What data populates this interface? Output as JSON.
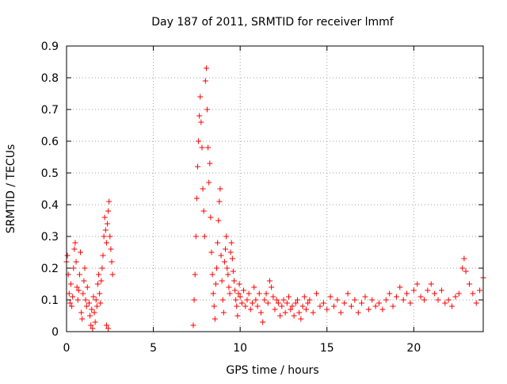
{
  "chart_data": {
    "type": "scatter",
    "title": "Day 187 of 2011, SRMTID for receiver lmmf",
    "xlabel": "GPS time / hours",
    "ylabel": "SRMTID / TECUs",
    "xlim": [
      0,
      24
    ],
    "ylim": [
      0,
      0.9
    ],
    "x_ticks": [
      0,
      5,
      10,
      15,
      20
    ],
    "y_ticks": [
      0,
      0.1,
      0.2,
      0.3,
      0.4,
      0.5,
      0.6,
      0.7,
      0.8,
      0.9
    ],
    "x_tick_labels": [
      "0",
      "5",
      "10",
      "15",
      "20"
    ],
    "y_tick_labels": [
      "0",
      "0.1",
      "0.2",
      "0.3",
      "0.4",
      "0.5",
      "0.6",
      "0.7",
      "0.8",
      "0.9"
    ],
    "grid": true,
    "marker": "+",
    "color": "#ff0000",
    "series": [
      {
        "name": "SRMTID",
        "points": [
          [
            0.0,
            0.22
          ],
          [
            0.05,
            0.24
          ],
          [
            0.1,
            0.18
          ],
          [
            0.15,
            0.12
          ],
          [
            0.2,
            0.09
          ],
          [
            0.25,
            0.15
          ],
          [
            0.3,
            0.08
          ],
          [
            0.35,
            0.11
          ],
          [
            0.4,
            0.2
          ],
          [
            0.45,
            0.26
          ],
          [
            0.5,
            0.28
          ],
          [
            0.55,
            0.22
          ],
          [
            0.6,
            0.14
          ],
          [
            0.65,
            0.1
          ],
          [
            0.7,
            0.13
          ],
          [
            0.75,
            0.18
          ],
          [
            0.8,
            0.25
          ],
          [
            0.85,
            0.06
          ],
          [
            0.9,
            0.04
          ],
          [
            0.95,
            0.12
          ],
          [
            1.0,
            0.16
          ],
          [
            1.05,
            0.2
          ],
          [
            1.1,
            0.1
          ],
          [
            1.15,
            0.08
          ],
          [
            1.2,
            0.14
          ],
          [
            1.3,
            0.09
          ],
          [
            1.35,
            0.05
          ],
          [
            1.4,
            0.02
          ],
          [
            1.45,
            0.07
          ],
          [
            1.5,
            0.01
          ],
          [
            1.55,
            0.11
          ],
          [
            1.6,
            0.06
          ],
          [
            1.65,
            0.03
          ],
          [
            1.7,
            0.1
          ],
          [
            1.75,
            0.08
          ],
          [
            1.8,
            0.15
          ],
          [
            1.85,
            0.18
          ],
          [
            1.9,
            0.12
          ],
          [
            1.95,
            0.09
          ],
          [
            2.0,
            0.16
          ],
          [
            2.05,
            0.2
          ],
          [
            2.1,
            0.24
          ],
          [
            2.15,
            0.3
          ],
          [
            2.2,
            0.36
          ],
          [
            2.25,
            0.32
          ],
          [
            2.3,
            0.28
          ],
          [
            2.35,
            0.34
          ],
          [
            2.4,
            0.38
          ],
          [
            2.45,
            0.41
          ],
          [
            2.5,
            0.3
          ],
          [
            2.55,
            0.26
          ],
          [
            2.6,
            0.22
          ],
          [
            2.65,
            0.18
          ],
          [
            2.3,
            0.02
          ],
          [
            2.4,
            0.01
          ],
          [
            7.3,
            0.02
          ],
          [
            7.35,
            0.1
          ],
          [
            7.4,
            0.18
          ],
          [
            7.45,
            0.3
          ],
          [
            7.5,
            0.42
          ],
          [
            7.55,
            0.52
          ],
          [
            7.6,
            0.6
          ],
          [
            7.65,
            0.68
          ],
          [
            7.7,
            0.74
          ],
          [
            7.75,
            0.66
          ],
          [
            7.8,
            0.58
          ],
          [
            7.85,
            0.45
          ],
          [
            7.9,
            0.38
          ],
          [
            7.95,
            0.3
          ],
          [
            8.0,
            0.79
          ],
          [
            8.05,
            0.83
          ],
          [
            8.1,
            0.7
          ],
          [
            8.15,
            0.58
          ],
          [
            8.2,
            0.47
          ],
          [
            8.25,
            0.53
          ],
          [
            8.3,
            0.36
          ],
          [
            8.35,
            0.25
          ],
          [
            8.4,
            0.18
          ],
          [
            8.45,
            0.12
          ],
          [
            8.5,
            0.08
          ],
          [
            8.55,
            0.04
          ],
          [
            8.6,
            0.15
          ],
          [
            8.65,
            0.2
          ],
          [
            8.7,
            0.28
          ],
          [
            8.75,
            0.35
          ],
          [
            8.8,
            0.41
          ],
          [
            8.85,
            0.45
          ],
          [
            8.9,
            0.24
          ],
          [
            8.95,
            0.16
          ],
          [
            9.0,
            0.1
          ],
          [
            9.05,
            0.06
          ],
          [
            9.1,
            0.22
          ],
          [
            9.15,
            0.26
          ],
          [
            9.2,
            0.3
          ],
          [
            9.25,
            0.2
          ],
          [
            9.3,
            0.18
          ],
          [
            9.35,
            0.14
          ],
          [
            9.4,
            0.12
          ],
          [
            9.45,
            0.25
          ],
          [
            9.5,
            0.28
          ],
          [
            9.55,
            0.23
          ],
          [
            9.6,
            0.19
          ],
          [
            9.65,
            0.16
          ],
          [
            9.7,
            0.13
          ],
          [
            9.75,
            0.1
          ],
          [
            9.8,
            0.08
          ],
          [
            9.85,
            0.05
          ],
          [
            9.9,
            0.12
          ],
          [
            9.95,
            0.15
          ],
          [
            10.0,
            0.11
          ],
          [
            10.1,
            0.09
          ],
          [
            10.2,
            0.13
          ],
          [
            10.3,
            0.08
          ],
          [
            10.4,
            0.1
          ],
          [
            10.5,
            0.12
          ],
          [
            10.6,
            0.07
          ],
          [
            10.7,
            0.09
          ],
          [
            10.8,
            0.14
          ],
          [
            10.9,
            0.1
          ],
          [
            11.0,
            0.08
          ],
          [
            11.1,
            0.12
          ],
          [
            11.2,
            0.06
          ],
          [
            11.3,
            0.03
          ],
          [
            11.4,
            0.1
          ],
          [
            11.5,
            0.12
          ],
          [
            11.6,
            0.09
          ],
          [
            11.7,
            0.16
          ],
          [
            11.8,
            0.14
          ],
          [
            11.9,
            0.11
          ],
          [
            12.0,
            0.07
          ],
          [
            12.1,
            0.1
          ],
          [
            12.2,
            0.09
          ],
          [
            12.3,
            0.05
          ],
          [
            12.4,
            0.08
          ],
          [
            12.5,
            0.1
          ],
          [
            12.6,
            0.06
          ],
          [
            12.7,
            0.09
          ],
          [
            12.8,
            0.11
          ],
          [
            12.9,
            0.07
          ],
          [
            13.0,
            0.08
          ],
          [
            13.1,
            0.05
          ],
          [
            13.2,
            0.09
          ],
          [
            13.3,
            0.1
          ],
          [
            13.4,
            0.06
          ],
          [
            13.5,
            0.04
          ],
          [
            13.6,
            0.08
          ],
          [
            13.7,
            0.11
          ],
          [
            13.8,
            0.07
          ],
          [
            13.9,
            0.09
          ],
          [
            14.0,
            0.1
          ],
          [
            14.2,
            0.06
          ],
          [
            14.4,
            0.12
          ],
          [
            14.6,
            0.08
          ],
          [
            14.8,
            0.09
          ],
          [
            15.0,
            0.07
          ],
          [
            15.2,
            0.11
          ],
          [
            15.4,
            0.08
          ],
          [
            15.6,
            0.1
          ],
          [
            15.8,
            0.06
          ],
          [
            16.0,
            0.09
          ],
          [
            16.2,
            0.12
          ],
          [
            16.4,
            0.08
          ],
          [
            16.6,
            0.1
          ],
          [
            16.8,
            0.06
          ],
          [
            17.0,
            0.09
          ],
          [
            17.2,
            0.11
          ],
          [
            17.4,
            0.07
          ],
          [
            17.6,
            0.1
          ],
          [
            17.8,
            0.08
          ],
          [
            18.0,
            0.09
          ],
          [
            18.2,
            0.07
          ],
          [
            18.4,
            0.1
          ],
          [
            18.6,
            0.12
          ],
          [
            18.8,
            0.08
          ],
          [
            19.0,
            0.11
          ],
          [
            19.2,
            0.14
          ],
          [
            19.4,
            0.1
          ],
          [
            19.6,
            0.12
          ],
          [
            19.8,
            0.09
          ],
          [
            20.0,
            0.13
          ],
          [
            20.2,
            0.15
          ],
          [
            20.4,
            0.11
          ],
          [
            20.6,
            0.1
          ],
          [
            20.8,
            0.13
          ],
          [
            21.0,
            0.15
          ],
          [
            21.2,
            0.12
          ],
          [
            21.4,
            0.1
          ],
          [
            21.6,
            0.13
          ],
          [
            21.8,
            0.09
          ],
          [
            22.0,
            0.1
          ],
          [
            22.2,
            0.08
          ],
          [
            22.4,
            0.11
          ],
          [
            22.6,
            0.12
          ],
          [
            22.8,
            0.2
          ],
          [
            22.9,
            0.23
          ],
          [
            23.0,
            0.19
          ],
          [
            23.2,
            0.15
          ],
          [
            23.4,
            0.12
          ],
          [
            23.6,
            0.09
          ],
          [
            23.8,
            0.13
          ],
          [
            24.0,
            0.17
          ]
        ]
      }
    ]
  }
}
